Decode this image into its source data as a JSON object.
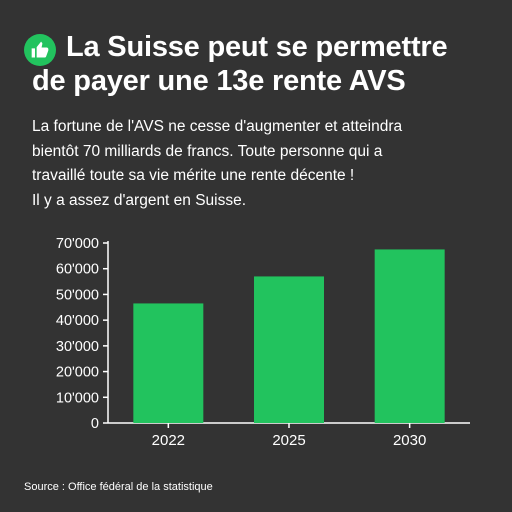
{
  "headline": {
    "line1": "La Suisse peut se permettre",
    "line2": "de payer une 13e rente AVS"
  },
  "body": {
    "lines": [
      "La fortune de l'AVS ne cesse d'augmenter et atteindra",
      "bientôt 70 milliards de francs. Toute personne qui a",
      "travaillé toute sa vie mérite une rente décente !",
      "Il y a assez d'argent en Suisse."
    ]
  },
  "icon": "thumbs-up-icon",
  "colors": {
    "background": "#333333",
    "accent": "#22c35e",
    "text": "#ffffff"
  },
  "chart_data": {
    "type": "bar",
    "categories": [
      "2022",
      "2025",
      "2030"
    ],
    "values": [
      46500,
      57000,
      67500
    ],
    "ylim": [
      0,
      70000
    ],
    "yticks": [
      0,
      10000,
      20000,
      30000,
      40000,
      50000,
      60000,
      70000
    ],
    "ytick_labels": [
      "0",
      "10'000",
      "20'000",
      "30'000",
      "40'000",
      "50'000",
      "60'000",
      "70'000"
    ],
    "grid": false,
    "bar_color": "#22c35e"
  },
  "source": "Source : Office fédéral de la statistique"
}
